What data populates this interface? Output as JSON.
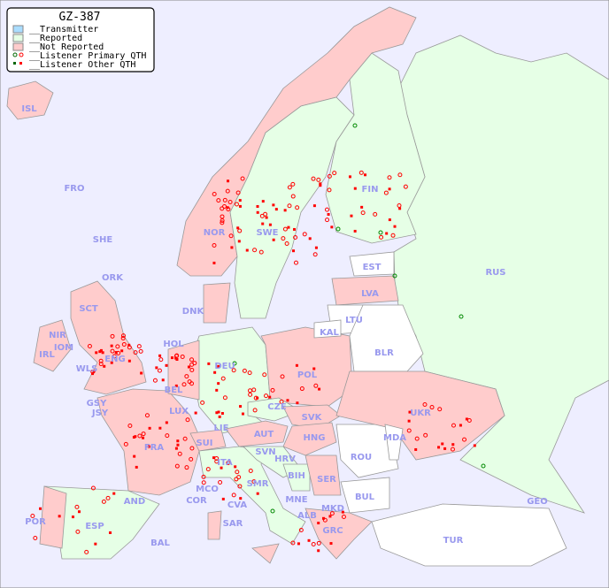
{
  "legend": {
    "title": "GZ-387",
    "items": [
      {
        "label": "__Transmitter",
        "color": "#aaddff"
      },
      {
        "label": "__Reported",
        "color": "#e6ffe6"
      },
      {
        "label": "__Not Reported",
        "color": "#ffcccc"
      },
      {
        "label": "__Listener Primary QTH",
        "colors": [
          "#006600",
          "#ff0000"
        ]
      },
      {
        "label": "__Listener Other QTH",
        "colors": [
          "#006600",
          "#ff0000"
        ]
      }
    ]
  },
  "colors": {
    "sea": "#eeeeff",
    "reported": "#e6ffe6",
    "not_reported": "#ffcccc",
    "no_data": "#ffffff",
    "listener": "#ff0000",
    "listener_alt": "#008800"
  },
  "countries": {
    "ISL": "ISL",
    "FRO": "FRO",
    "SHE": "SHE",
    "ORK": "ORK",
    "NOR": "NOR",
    "SWE": "SWE",
    "FIN": "FIN",
    "EST": "EST",
    "LVA": "LVA",
    "LTU": "LTU",
    "RUS": "RUS",
    "DNK": "DNK",
    "KAL": "KAL",
    "HOL": "HOL",
    "IOM": "IOM",
    "IRL": "IRL",
    "WLS": "WLS",
    "DEU": "DEU",
    "POL": "POL",
    "BLR": "BLR",
    "GSY": "GSY",
    "JSY": "JSY",
    "BEL": "BEL",
    "LUX": "LUX",
    "CZE": "CZE",
    "SVK": "SVK",
    "UKR": "UKR",
    "FRA": "FRA",
    "SUI": "SUI",
    "LIE": "LIE",
    "AUT": "AUT",
    "HNG": "HNG",
    "MDA": "MDA",
    "SVN": "SVN",
    "HRV": "HRV",
    "ROU": "ROU",
    "ITA": "ITA",
    "BIH": "BIH",
    "SER": "SER",
    "MCO": "MCO",
    "COR": "COR",
    "SMR": "SMR",
    "AND": "AND",
    "BUL": "BUL",
    "MNE": "MNE",
    "GEO": "GEO",
    "CVA": "CVA",
    "ALB": "ALB",
    "MKD": "MKD",
    "POR": "POR",
    "ESP": "ESP",
    "SAR": "SAR",
    "BAL": "BAL",
    "GRC": "GRC",
    "TUR": "TUR",
    "SCT": "SCT",
    "NIR": "NIR",
    "ENG": "ENG"
  }
}
